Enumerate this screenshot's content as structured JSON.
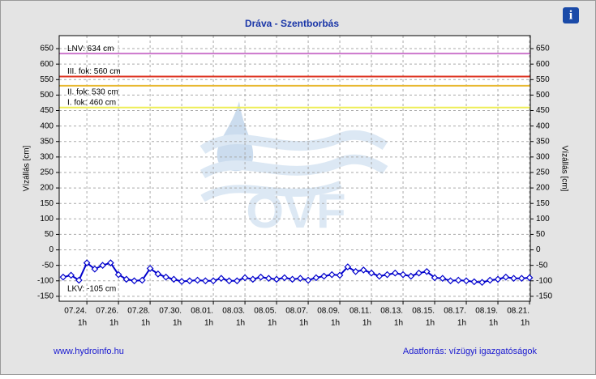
{
  "chart_data": {
    "type": "line",
    "title": "Dráva - Szentborbás",
    "y_label": "Vízállás [cm]",
    "watermark": "OVF",
    "info_icon": "i",
    "footer_left": "www.hydroinfo.hu",
    "footer_right": "Adatforrás: vízügyi igazgatóságok",
    "xlim": [
      22.25,
      52.05
    ],
    "xticks": [
      {
        "value": 24,
        "label": "07.24."
      },
      {
        "value": 26,
        "label": "07.26."
      },
      {
        "value": 28,
        "label": "07.28."
      },
      {
        "value": 30,
        "label": "07.30."
      },
      {
        "value": 32,
        "label": "08.01."
      },
      {
        "value": 34,
        "label": "08.03."
      },
      {
        "value": 36,
        "label": "08.05."
      },
      {
        "value": 38,
        "label": "08.07."
      },
      {
        "value": 40,
        "label": "08.09."
      },
      {
        "value": 42,
        "label": "08.11."
      },
      {
        "value": 44,
        "label": "08.13."
      },
      {
        "value": 46,
        "label": "08.15."
      },
      {
        "value": 48,
        "label": "08.17."
      },
      {
        "value": 50,
        "label": "08.19."
      },
      {
        "value": 52,
        "label": "08.21."
      }
    ],
    "xtick_sublabel": "1h",
    "ylim": [
      -166,
      692
    ],
    "yticks": [
      -150,
      -100,
      -50,
      0,
      50,
      100,
      150,
      200,
      250,
      300,
      350,
      400,
      450,
      500,
      550,
      600,
      650
    ],
    "grid": true,
    "reference_lines": [
      {
        "label": "LNV: 634 cm",
        "value": 634,
        "color": "#cc77cc"
      },
      {
        "label": "III. fok: 560 cm",
        "value": 560,
        "color": "#dd3322"
      },
      {
        "label": "II. fok: 530 cm",
        "value": 530,
        "color": "#e8b830"
      },
      {
        "label": "I. fok: 460 cm",
        "value": 460,
        "color": "#eeee55"
      },
      {
        "label": "LKV: -105 cm",
        "value": -105
      }
    ],
    "x": [
      22.5,
      23,
      23.5,
      24,
      24.5,
      25,
      25.5,
      26,
      26.5,
      27,
      27.5,
      28,
      28.5,
      29,
      29.5,
      30,
      30.5,
      31,
      31.5,
      32,
      32.5,
      33,
      33.5,
      34,
      34.5,
      35,
      35.5,
      36,
      36.5,
      37,
      37.5,
      38,
      38.5,
      39,
      39.5,
      40,
      40.5,
      41,
      41.5,
      42,
      42.5,
      43,
      43.5,
      44,
      44.5,
      45,
      45.5,
      46,
      46.5,
      47,
      47.5,
      48,
      48.5,
      49,
      49.5,
      50,
      50.5,
      51,
      51.5,
      52
    ],
    "series": [
      {
        "color": "#0000cc",
        "values": [
          -88,
          -82,
          -98,
          -42,
          -62,
          -50,
          -42,
          -80,
          -95,
          -100,
          -98,
          -60,
          -78,
          -88,
          -95,
          -102,
          -100,
          -98,
          -100,
          -100,
          -92,
          -100,
          -100,
          -90,
          -95,
          -88,
          -92,
          -95,
          -90,
          -95,
          -92,
          -98,
          -90,
          -85,
          -80,
          -82,
          -55,
          -70,
          -65,
          -75,
          -85,
          -80,
          -75,
          -80,
          -85,
          -75,
          -70,
          -90,
          -92,
          -100,
          -98,
          -100,
          -103,
          -105,
          -98,
          -95,
          -88,
          -92,
          -92,
          -90
        ]
      }
    ]
  }
}
